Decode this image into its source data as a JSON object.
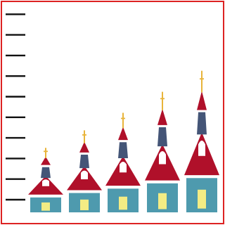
{
  "chart_data": {
    "type": "bar",
    "title": "",
    "xlabel": "",
    "ylabel": "",
    "categories": [
      "",
      "",
      "",
      "",
      ""
    ],
    "values": [
      17,
      22,
      27,
      33,
      39
    ],
    "ylim": [
      0,
      43
    ],
    "y_ticks": [
      0,
      1,
      2,
      3,
      4,
      5,
      6,
      7,
      8,
      9
    ],
    "tick_labels_shown": false,
    "grid": false,
    "legend": "none",
    "mark_style": "pictograph-church-tower"
  },
  "colors": {
    "frame": "#dd2222",
    "tick": "#111111",
    "body": "#4e9aae",
    "roof": "#b0102a",
    "band": "#445577",
    "window": "#f3ec84",
    "white": "#ffffff",
    "cross": "#e8b43a"
  }
}
